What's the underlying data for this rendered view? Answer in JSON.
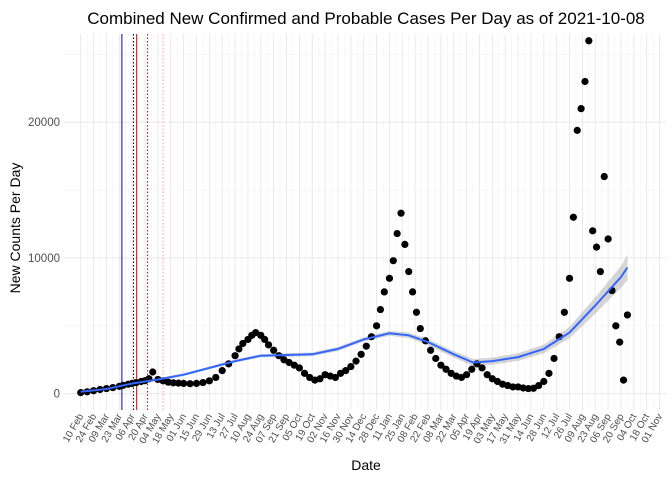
{
  "chart_data": {
    "type": "scatter",
    "title": "Combined New Confirmed and Probable Cases Per Day as of 2021-10-08",
    "xlabel": "Date",
    "ylabel": "New Counts Per Day",
    "ylim": [
      -1200,
      26500
    ],
    "yticks": [
      0,
      10000,
      20000
    ],
    "grid": true,
    "x_tick_labels": [
      "10 Feb",
      "24 Feb",
      "09 Mar",
      "23 Mar",
      "06 Apr",
      "20 Apr",
      "04 May",
      "18 May",
      "01 Jun",
      "15 Jun",
      "29 Jun",
      "13 Jul",
      "27 Jul",
      "10 Aug",
      "24 Aug",
      "07 Sep",
      "21 Sep",
      "05 Oct",
      "19 Oct",
      "02 Nov",
      "16 Nov",
      "30 Nov",
      "14 Dec",
      "28 Dec",
      "11 Jan",
      "25 Jan",
      "08 Feb",
      "22 Feb",
      "08 Mar",
      "22 Mar",
      "05 Apr",
      "19 Apr",
      "03 May",
      "17 May",
      "31 May",
      "14 Jun",
      "28 Jun",
      "12 Jul",
      "26 Jul",
      "09 Aug",
      "23 Aug",
      "06 Sep",
      "20 Sep",
      "04 Oct",
      "18 Oct",
      "01 Nov"
    ],
    "vertical_lines": [
      {
        "color": "#0000cc",
        "style": "solid",
        "index": 3.2
      },
      {
        "color": "#000000",
        "style": "dotted",
        "index": 4.1
      },
      {
        "color": "#cc0000",
        "style": "solid",
        "index": 4.35
      },
      {
        "color": "#cc0000",
        "style": "dotted",
        "index": 5.2
      },
      {
        "color": "#ff9999",
        "style": "dotted",
        "index": 6.4
      }
    ],
    "series": [
      {
        "points_color": "#000000",
        "points": [
          [
            0,
            80
          ],
          [
            0.5,
            140
          ],
          [
            1,
            220
          ],
          [
            1.5,
            310
          ],
          [
            2,
            380
          ],
          [
            2.5,
            450
          ],
          [
            3,
            540
          ],
          [
            3.3,
            620
          ],
          [
            3.7,
            700
          ],
          [
            4,
            760
          ],
          [
            4.3,
            820
          ],
          [
            4.7,
            900
          ],
          [
            5,
            960
          ],
          [
            5.3,
            1100
          ],
          [
            5.6,
            1600
          ],
          [
            6,
            1050
          ],
          [
            6.4,
            950
          ],
          [
            6.8,
            850
          ],
          [
            7.2,
            800
          ],
          [
            7.6,
            780
          ],
          [
            8,
            760
          ],
          [
            8.5,
            740
          ],
          [
            9,
            760
          ],
          [
            9.5,
            820
          ],
          [
            10,
            950
          ],
          [
            10.5,
            1200
          ],
          [
            11,
            1700
          ],
          [
            11.5,
            2200
          ],
          [
            12,
            2800
          ],
          [
            12.3,
            3300
          ],
          [
            12.6,
            3700
          ],
          [
            13,
            4000
          ],
          [
            13.3,
            4300
          ],
          [
            13.6,
            4500
          ],
          [
            14,
            4300
          ],
          [
            14.3,
            4000
          ],
          [
            14.6,
            3600
          ],
          [
            15,
            3200
          ],
          [
            15.4,
            2800
          ],
          [
            15.8,
            2500
          ],
          [
            16.2,
            2300
          ],
          [
            16.6,
            2100
          ],
          [
            17,
            1900
          ],
          [
            17.4,
            1500
          ],
          [
            17.8,
            1200
          ],
          [
            18.2,
            1000
          ],
          [
            18.6,
            1100
          ],
          [
            19,
            1400
          ],
          [
            19.4,
            1300
          ],
          [
            19.8,
            1200
          ],
          [
            20.2,
            1500
          ],
          [
            20.6,
            1700
          ],
          [
            21,
            2000
          ],
          [
            21.4,
            2400
          ],
          [
            21.8,
            2900
          ],
          [
            22.2,
            3500
          ],
          [
            22.6,
            4200
          ],
          [
            23,
            5000
          ],
          [
            23.3,
            6200
          ],
          [
            23.6,
            7500
          ],
          [
            24,
            8500
          ],
          [
            24.3,
            9800
          ],
          [
            24.6,
            11800
          ],
          [
            24.9,
            13300
          ],
          [
            25.2,
            11000
          ],
          [
            25.5,
            9000
          ],
          [
            25.8,
            7500
          ],
          [
            26.1,
            6000
          ],
          [
            26.4,
            4800
          ],
          [
            26.8,
            3900
          ],
          [
            27.2,
            3200
          ],
          [
            27.6,
            2600
          ],
          [
            28,
            2100
          ],
          [
            28.4,
            1800
          ],
          [
            28.8,
            1500
          ],
          [
            29.2,
            1300
          ],
          [
            29.6,
            1200
          ],
          [
            30,
            1400
          ],
          [
            30.4,
            1800
          ],
          [
            30.8,
            2200
          ],
          [
            31.2,
            1900
          ],
          [
            31.6,
            1400
          ],
          [
            32,
            1100
          ],
          [
            32.4,
            900
          ],
          [
            32.8,
            700
          ],
          [
            33.2,
            600
          ],
          [
            33.6,
            500
          ],
          [
            34,
            500
          ],
          [
            34.4,
            420
          ],
          [
            34.8,
            380
          ],
          [
            35.2,
            400
          ],
          [
            35.6,
            600
          ],
          [
            36,
            900
          ],
          [
            36.4,
            1500
          ],
          [
            36.8,
            2600
          ],
          [
            37.2,
            4200
          ],
          [
            37.6,
            6000
          ],
          [
            38,
            8500
          ],
          [
            38.3,
            13000
          ],
          [
            38.6,
            19400
          ],
          [
            38.9,
            21000
          ],
          [
            39.2,
            23000
          ],
          [
            39.5,
            26000
          ],
          [
            39.8,
            12000
          ],
          [
            40.1,
            10800
          ],
          [
            40.4,
            9000
          ],
          [
            40.7,
            16000
          ],
          [
            41,
            11400
          ],
          [
            41.3,
            7600
          ],
          [
            41.6,
            5000
          ],
          [
            41.9,
            3800
          ],
          [
            42.2,
            1000
          ],
          [
            42.5,
            5800
          ]
        ]
      },
      {
        "name": "",
        "smooth_color": "#3366ff",
        "smooth": [
          [
            0,
            150
          ],
          [
            2,
            350
          ],
          [
            4,
            750
          ],
          [
            6,
            1050
          ],
          [
            8,
            1400
          ],
          [
            10,
            1900
          ],
          [
            12,
            2400
          ],
          [
            14,
            2800
          ],
          [
            16,
            2850
          ],
          [
            18,
            2900
          ],
          [
            20,
            3300
          ],
          [
            22,
            4000
          ],
          [
            24,
            4450
          ],
          [
            25.5,
            4300
          ],
          [
            27,
            3800
          ],
          [
            29,
            2900
          ],
          [
            30.5,
            2300
          ],
          [
            32,
            2400
          ],
          [
            34,
            2700
          ],
          [
            36,
            3300
          ],
          [
            38,
            4500
          ],
          [
            40,
            6500
          ],
          [
            42,
            8600
          ],
          [
            42.5,
            9300
          ]
        ],
        "band_halfwidth": [
          180,
          120,
          100,
          100,
          100,
          100,
          110,
          120,
          130,
          140,
          150,
          160,
          180,
          200,
          220,
          240,
          260,
          270,
          280,
          320,
          420,
          600,
          800,
          950
        ]
      }
    ]
  }
}
